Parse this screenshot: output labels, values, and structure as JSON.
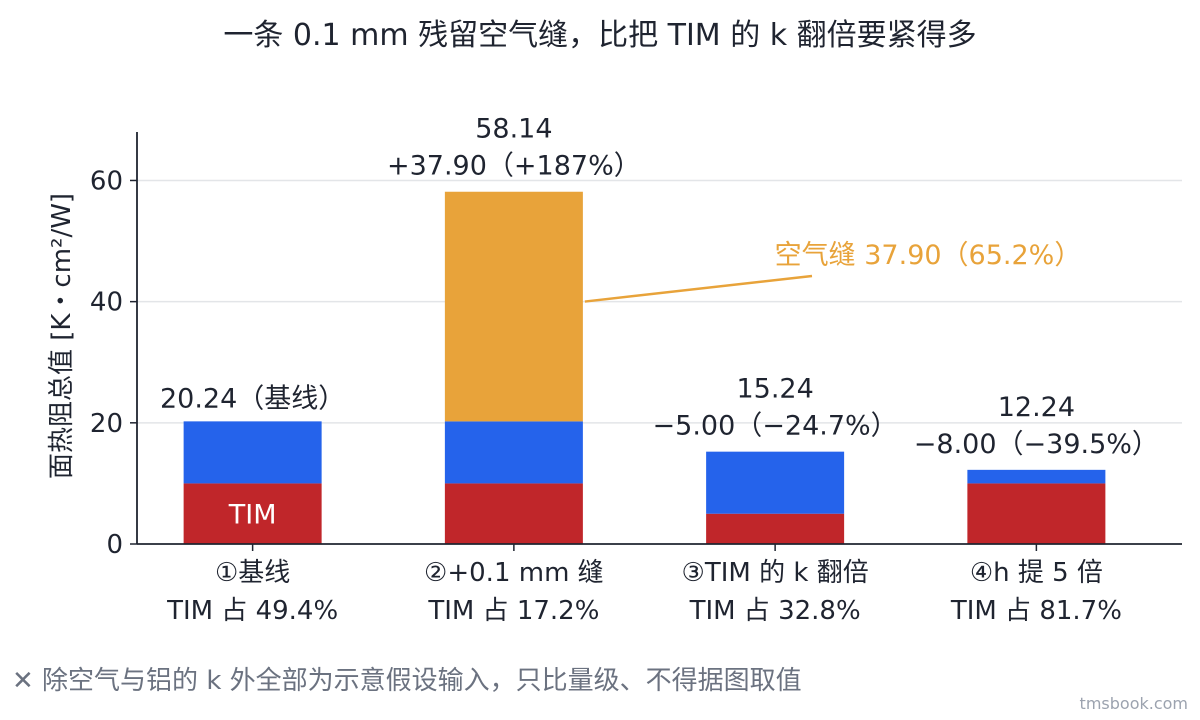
{
  "chart_data": {
    "type": "bar",
    "stacked": true,
    "title": "一条 0.1 mm 残留空气缝，比把 TIM 的 k 翻倍要紧得多",
    "ylabel": "面热阻总值  [K・cm²/W]",
    "ylim": [
      0,
      68
    ],
    "yticks": [
      0,
      20,
      40,
      60
    ],
    "grid": true,
    "categories": [
      {
        "line1": "①基线",
        "line2": "TIM 占 49.4%"
      },
      {
        "line1": "②+0.1 mm 缝",
        "line2": "TIM 占 17.2%"
      },
      {
        "line1": "③TIM 的 k 翻倍",
        "line2": "TIM 占 32.8%"
      },
      {
        "line1": "④h 提 5 倍",
        "line2": "TIM 占 81.7%"
      }
    ],
    "series": [
      {
        "color": "#c0262a",
        "values": [
          10,
          10,
          5,
          10
        ]
      },
      {
        "color": "#2563eb",
        "values": [
          10.24,
          10.24,
          10.24,
          2.24
        ]
      },
      {
        "color": "#e8a33a",
        "values": [
          0,
          37.9,
          0,
          0
        ]
      }
    ],
    "totals": [
      20.24,
      58.14,
      15.24,
      12.24
    ],
    "bar_labels": [
      {
        "line1": "20.24（基线）",
        "line2": ""
      },
      {
        "line1": "58.14",
        "line2": "+37.90（+187%）"
      },
      {
        "line1": "15.24",
        "line2": "−5.00（−24.7%）"
      },
      {
        "line1": "12.24",
        "line2": "−8.00（−39.5%）"
      }
    ],
    "inbar_label": "TIM",
    "callout": {
      "text": "空气缝 37.90（65.2%）",
      "color": "#e8a33a"
    }
  },
  "footnote": "✕ 除空气与铝的 k 外全部为示意假设输入，只比量级、不得据图取值",
  "watermark": "tmsbook.com"
}
